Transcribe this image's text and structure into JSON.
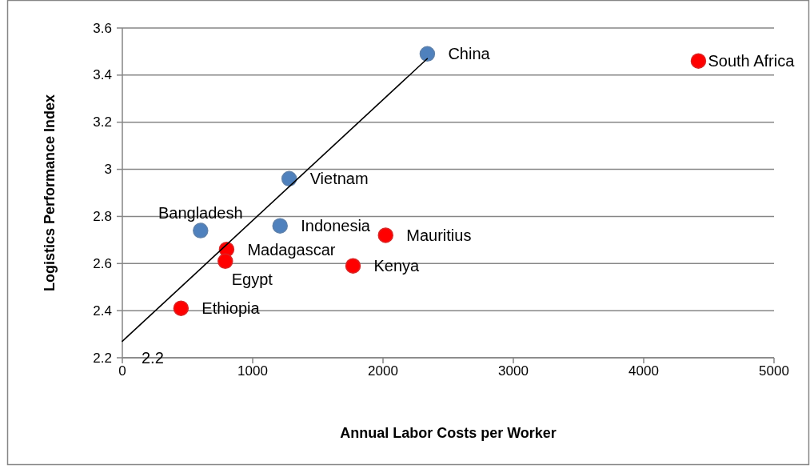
{
  "chart_data": {
    "type": "scatter",
    "xlabel": "Annual Labor Costs per Worker",
    "ylabel": "Logistics Performance Index",
    "xlim": [
      0,
      5000
    ],
    "xticks": [
      0,
      1000,
      2000,
      3000,
      4000,
      5000
    ],
    "ylim": [
      2.2,
      3.6
    ],
    "yticks": [
      2.2,
      2.4,
      2.6,
      2.8,
      3,
      3.2,
      3.4,
      3.6
    ],
    "grid": "y",
    "marker": "circle",
    "series": [
      {
        "color": "#4f81bd",
        "x": [
          2340,
          1280,
          1210,
          600
        ],
        "values": [
          3.49,
          2.96,
          2.76,
          2.74
        ],
        "value_labels": [
          "China",
          "Vietnam",
          "Indonesia",
          "Bangladesh"
        ]
      },
      {
        "color": "#ff0000",
        "x": [
          4420,
          2020,
          1770,
          800,
          790,
          450
        ],
        "values": [
          3.46,
          2.72,
          2.59,
          2.66,
          2.61,
          2.41
        ],
        "value_labels": [
          "South Africa",
          "Mauritius",
          "Kenya",
          "Madagascar",
          "Egypt",
          "Ethiopia"
        ]
      },
      {
        "type": "line",
        "color": "#000000",
        "x": [
          0,
          2340
        ],
        "values": [
          2.27,
          3.47
        ],
        "marker": "none"
      }
    ],
    "annotations": [
      "2.2"
    ]
  }
}
